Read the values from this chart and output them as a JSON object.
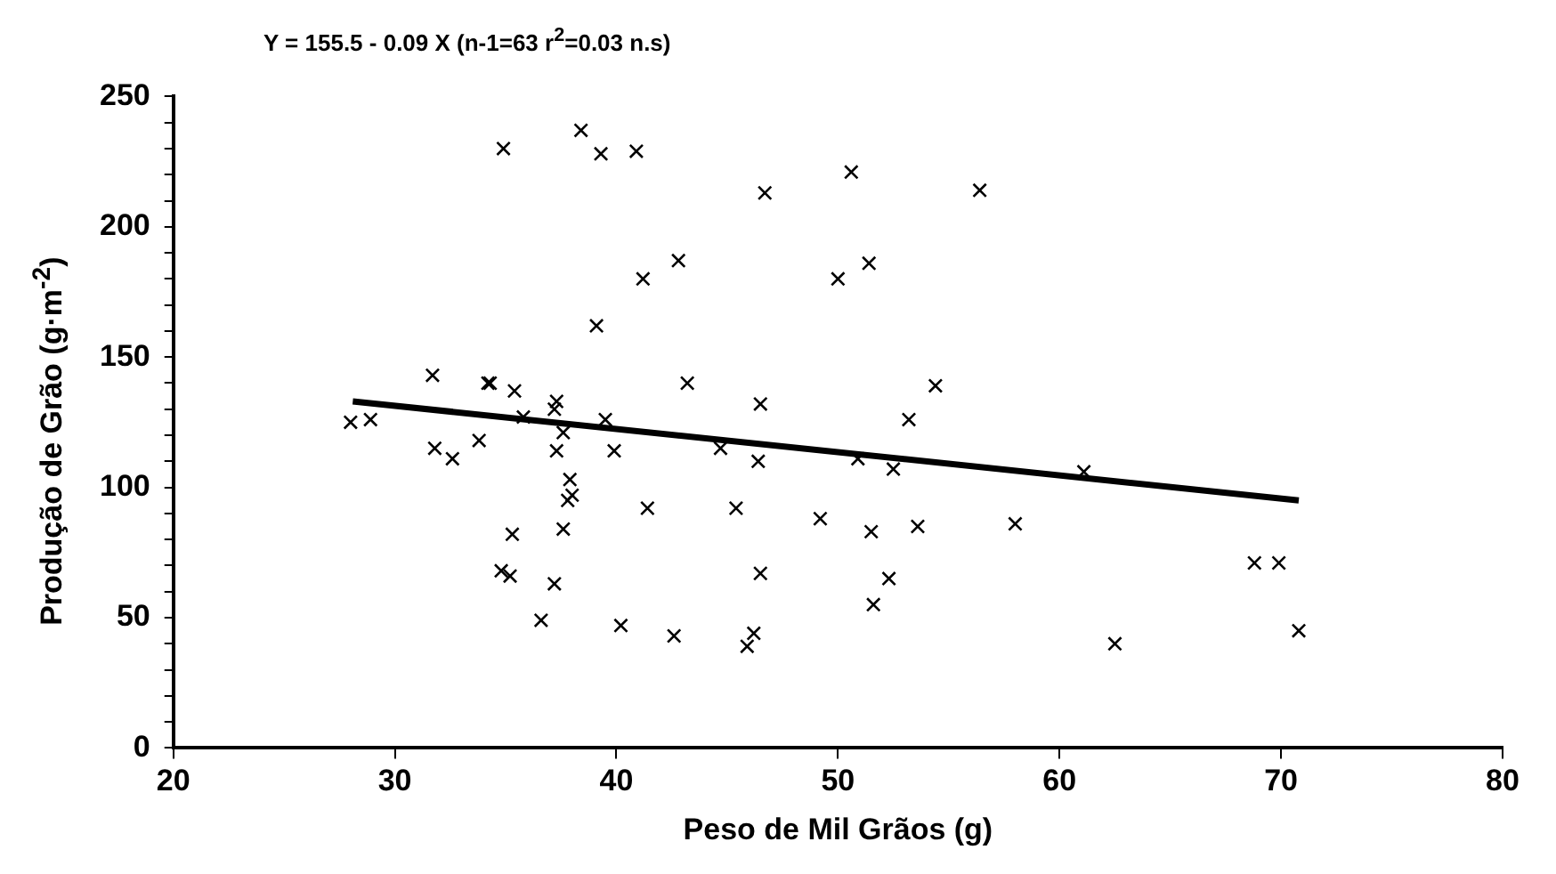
{
  "chart_data": {
    "type": "scatter",
    "title": "Y = 155.5 - 0.09 X  (n-1=63  r$^{2}$=0.03  n.s)",
    "xlabel": "Peso de Mil Grãos (g)",
    "ylabel": "Produção de Grão (g·m$^{-2}$)",
    "xlim": [
      20,
      80
    ],
    "xticks": [
      20,
      30,
      40,
      50,
      60,
      70,
      80
    ],
    "ylim": [
      0,
      250
    ],
    "yticks": [
      0,
      {
        "value": 10,
        "label": null
      },
      {
        "value": 20,
        "label": null
      },
      {
        "value": 30,
        "label": null
      },
      {
        "value": 40,
        "label": null
      },
      50,
      {
        "value": 60,
        "label": null
      },
      {
        "value": 70,
        "label": null
      },
      {
        "value": 80,
        "label": null
      },
      {
        "value": 90,
        "label": null
      },
      100,
      {
        "value": 110,
        "label": null
      },
      {
        "value": 120,
        "label": null
      },
      {
        "value": 130,
        "label": null
      },
      {
        "value": 140,
        "label": null
      },
      150,
      {
        "value": 160,
        "label": null
      },
      {
        "value": 170,
        "label": null
      },
      {
        "value": 180,
        "label": null
      },
      {
        "value": 190,
        "label": null
      },
      200,
      {
        "value": 210,
        "label": null
      },
      {
        "value": 220,
        "label": null
      },
      {
        "value": 230,
        "label": null
      },
      {
        "value": 240,
        "label": null
      },
      250
    ],
    "grid": false,
    "legend": false,
    "series": [
      {
        "marker": "cross",
        "color": "#000000",
        "x": [
          34.9,
          38.4,
          39.3,
          39.1,
          31.7,
          34.2,
          34.3,
          35.4,
          37.3,
          37.2,
          35.8,
          28.0,
          28.9,
          39.5,
          40.9,
          46.7,
          50.6,
          56.4,
          42.8,
          41.2,
          50.0,
          51.4,
          43.2,
          46.5,
          54.4,
          53.2,
          31.8,
          32.6,
          33.8,
          37.6,
          37.3,
          39.9,
          37.9,
          38.0,
          37.8,
          35.3,
          37.6,
          34.8,
          35.2,
          37.2,
          36.6,
          40.2,
          44.7,
          46.4,
          50.9,
          52.5,
          61.1,
          41.4,
          45.4,
          49.2,
          51.5,
          53.6,
          58.0,
          46.5,
          52.3,
          51.6,
          42.6,
          46.2,
          45.9,
          68.8,
          69.9,
          70.8,
          62.5
        ],
        "values": [
          230,
          237,
          228,
          162,
          143,
          140,
          140,
          137,
          133,
          130,
          127,
          125,
          126,
          126,
          229,
          213,
          221,
          214,
          187,
          180,
          180,
          186,
          140,
          132,
          139,
          126,
          115,
          111,
          118,
          121,
          114,
          114,
          103,
          97,
          95,
          82,
          84,
          68,
          66,
          63,
          49,
          47,
          115,
          110,
          111,
          107,
          106,
          92,
          92,
          88,
          83,
          85,
          86,
          67,
          65,
          55,
          43,
          44,
          39,
          71,
          71,
          45,
          40
        ]
      },
      {
        "type": "line",
        "marker": "none",
        "color": "#000000",
        "x": [
          28.1,
          70.8
        ],
        "values": [
          133,
          95
        ]
      }
    ]
  }
}
